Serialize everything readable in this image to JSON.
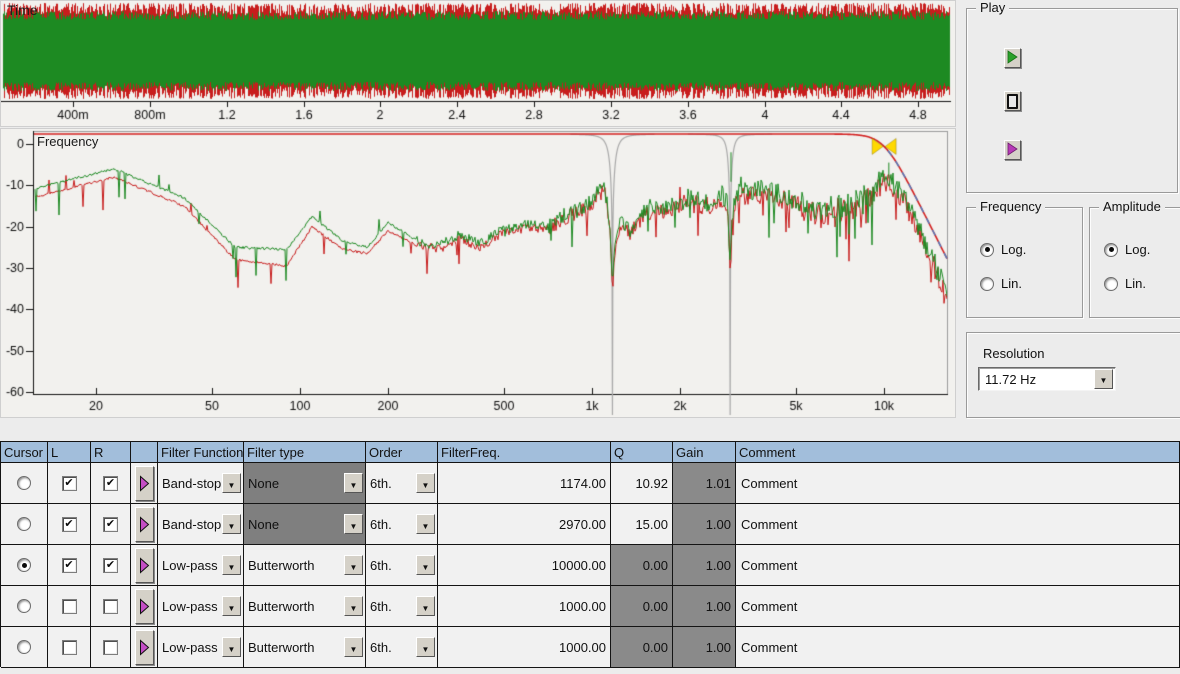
{
  "colors": {
    "wave_green": "#1d8a22",
    "wave_red": "#c81d1d",
    "filter_curve_red": "#d32020",
    "filter_notch_gray": "#a9a9a9",
    "combined_dash_blue": "#4b7fc4",
    "cursor_marker_yellow": "#ffd900",
    "table_header_blue": "#a2bedb",
    "disabled_cell_gray": "#8a8a8a",
    "disabled_combo_gray": "#7f7f7f"
  },
  "panels": {
    "play": {
      "label": "Play",
      "buttons": [
        {
          "name": "play-original",
          "glyph": "green-play-triangle"
        },
        {
          "name": "stop",
          "glyph": "stop-rectangle"
        },
        {
          "name": "play-filtered",
          "glyph": "magenta-play-triangle"
        }
      ]
    },
    "frequency_scale": {
      "label": "Frequency",
      "options": [
        {
          "label": "Log.",
          "selected": true
        },
        {
          "label": "Lin.",
          "selected": false
        }
      ]
    },
    "amplitude_scale": {
      "label": "Amplitude",
      "options": [
        {
          "label": "Log.",
          "selected": true
        },
        {
          "label": "Lin.",
          "selected": false
        }
      ]
    },
    "resolution": {
      "label": "Resolution",
      "value": "11.72 Hz"
    }
  },
  "chart_data": [
    {
      "type": "waveform",
      "title": "Time",
      "duration_s": 5,
      "x_ticks": [
        {
          "t": 0.4,
          "label": "400m"
        },
        {
          "t": 0.8,
          "label": "800m"
        },
        {
          "t": 1.2,
          "label": "1.2"
        },
        {
          "t": 1.6,
          "label": "1.6"
        },
        {
          "t": 2.0,
          "label": "2"
        },
        {
          "t": 2.4,
          "label": "2.4"
        },
        {
          "t": 2.8,
          "label": "2.8"
        },
        {
          "t": 3.2,
          "label": "3.2"
        },
        {
          "t": 3.6,
          "label": "3.6"
        },
        {
          "t": 4.0,
          "label": "4"
        },
        {
          "t": 4.4,
          "label": "4.4"
        },
        {
          "t": 4.8,
          "label": "4.8"
        }
      ],
      "series": [
        {
          "name": "right-channel-noise",
          "color": "#c81d1d"
        },
        {
          "name": "left-channel-noise",
          "color": "#1d8a22"
        }
      ]
    },
    {
      "type": "line",
      "title": "Frequency",
      "xscale": "log",
      "xlim_hz": [
        12,
        16600
      ],
      "ylim_db": [
        -60,
        0
      ],
      "x_ticks": [
        {
          "f": 20,
          "label": "20"
        },
        {
          "f": 50,
          "label": "50"
        },
        {
          "f": 100,
          "label": "100"
        },
        {
          "f": 200,
          "label": "200"
        },
        {
          "f": 500,
          "label": "500"
        },
        {
          "f": 1000,
          "label": "1k"
        },
        {
          "f": 2000,
          "label": "2k"
        },
        {
          "f": 5000,
          "label": "5k"
        },
        {
          "f": 10000,
          "label": "10k"
        }
      ],
      "y_ticks_db": [
        0,
        -10,
        -20,
        -30,
        -40,
        -50,
        -60
      ],
      "series": [
        {
          "name": "left-spectrum-green",
          "color": "#1d8a22",
          "points_hz_db": [
            [
              12,
              -11
            ],
            [
              23,
              -6
            ],
            [
              40,
              -13
            ],
            [
              60,
              -25
            ],
            [
              90,
              -25.5
            ],
            [
              110,
              -17.5
            ],
            [
              140,
              -23.5
            ],
            [
              170,
              -25
            ],
            [
              200,
              -19
            ],
            [
              260,
              -24
            ],
            [
              300,
              -24.5
            ],
            [
              350,
              -22
            ],
            [
              420,
              -24
            ],
            [
              480,
              -21
            ],
            [
              550,
              -20
            ],
            [
              620,
              -19
            ],
            [
              700,
              -20
            ],
            [
              800,
              -17
            ],
            [
              900,
              -16
            ],
            [
              1000,
              -13
            ],
            [
              1100,
              -8
            ],
            [
              1200,
              -15
            ],
            [
              1350,
              -20
            ],
            [
              1500,
              -16
            ],
            [
              1800,
              -15
            ],
            [
              2100,
              -13
            ],
            [
              2500,
              -14
            ],
            [
              2970,
              -9
            ],
            [
              3300,
              -11
            ],
            [
              4000,
              -11
            ],
            [
              5000,
              -14
            ],
            [
              6000,
              -16
            ],
            [
              7000,
              -15
            ],
            [
              8000,
              -14
            ],
            [
              9000,
              -12
            ],
            [
              10000,
              -7
            ],
            [
              11500,
              -12
            ],
            [
              13000,
              -20
            ],
            [
              14500,
              -27
            ],
            [
              16600,
              -37
            ]
          ],
          "spikes_hz_db": [
            [
              2990,
              -2
            ],
            [
              10380,
              -4.5
            ]
          ]
        },
        {
          "name": "right-spectrum-red",
          "color": "#c81d1d",
          "points_hz_db": [
            [
              12,
              -13
            ],
            [
              23,
              -8
            ],
            [
              40,
              -15
            ],
            [
              60,
              -28
            ],
            [
              90,
              -29.5
            ],
            [
              110,
              -20
            ],
            [
              140,
              -25.5
            ],
            [
              170,
              -26.5
            ],
            [
              200,
              -21
            ],
            [
              260,
              -25
            ],
            [
              300,
              -25.5
            ],
            [
              350,
              -23
            ],
            [
              420,
              -25
            ],
            [
              480,
              -22
            ],
            [
              550,
              -21
            ],
            [
              620,
              -20
            ],
            [
              700,
              -21
            ],
            [
              800,
              -18
            ],
            [
              900,
              -16.5
            ],
            [
              1000,
              -14
            ],
            [
              1100,
              -9
            ],
            [
              1200,
              -16
            ],
            [
              1350,
              -21
            ],
            [
              1500,
              -17
            ],
            [
              1800,
              -16
            ],
            [
              2100,
              -14
            ],
            [
              2500,
              -15
            ],
            [
              2970,
              -11
            ],
            [
              3300,
              -12
            ],
            [
              4000,
              -12
            ],
            [
              5000,
              -15
            ],
            [
              6000,
              -17
            ],
            [
              7000,
              -16
            ],
            [
              8000,
              -15
            ],
            [
              9000,
              -13
            ],
            [
              10000,
              -9
            ],
            [
              11500,
              -13
            ],
            [
              13000,
              -21
            ],
            [
              14500,
              -28
            ],
            [
              16600,
              -38
            ]
          ],
          "spikes_hz_db": []
        }
      ],
      "filter_overlays": [
        {
          "type": "band-stop",
          "f0_hz": 1174,
          "q": 10.92,
          "color": "#a9a9a9"
        },
        {
          "type": "band-stop",
          "f0_hz": 2970,
          "q": 15.0,
          "color": "#a9a9a9"
        },
        {
          "type": "low-pass",
          "f0_hz": 10000,
          "order": 6,
          "color": "#d32020"
        }
      ],
      "cursor_marker": {
        "f_hz": 10000,
        "color": "#ffd900"
      }
    }
  ],
  "table": {
    "headers": [
      "Cursor",
      "L",
      "R",
      "",
      "Filter Function",
      "Filter type",
      "Order",
      "FilterFreq.",
      "Q",
      "Gain",
      "Comment"
    ],
    "rows": [
      {
        "cursor": false,
        "l": true,
        "r": true,
        "filter_function": "Band-stop",
        "filter_type": "None",
        "filter_type_disabled": true,
        "order": "6th.",
        "freq": "1174.00",
        "q": "10.92",
        "q_disabled": false,
        "gain": "1.01",
        "gain_disabled": true,
        "comment": "Comment"
      },
      {
        "cursor": false,
        "l": true,
        "r": true,
        "filter_function": "Band-stop",
        "filter_type": "None",
        "filter_type_disabled": true,
        "order": "6th.",
        "freq": "2970.00",
        "q": "15.00",
        "q_disabled": false,
        "gain": "1.00",
        "gain_disabled": true,
        "comment": "Comment"
      },
      {
        "cursor": true,
        "l": true,
        "r": true,
        "filter_function": "Low-pass",
        "filter_type": "Butterworth",
        "filter_type_disabled": false,
        "order": "6th.",
        "freq": "10000.00",
        "q": "0.00",
        "q_disabled": true,
        "gain": "1.00",
        "gain_disabled": true,
        "comment": "Comment"
      },
      {
        "cursor": false,
        "l": false,
        "r": false,
        "filter_function": "Low-pass",
        "filter_type": "Butterworth",
        "filter_type_disabled": false,
        "order": "6th.",
        "freq": "1000.00",
        "q": "0.00",
        "q_disabled": true,
        "gain": "1.00",
        "gain_disabled": true,
        "comment": "Comment"
      },
      {
        "cursor": false,
        "l": false,
        "r": false,
        "filter_function": "Low-pass",
        "filter_type": "Butterworth",
        "filter_type_disabled": false,
        "order": "6th.",
        "freq": "1000.00",
        "q": "0.00",
        "q_disabled": true,
        "gain": "1.00",
        "gain_disabled": true,
        "comment": "Comment"
      }
    ]
  }
}
